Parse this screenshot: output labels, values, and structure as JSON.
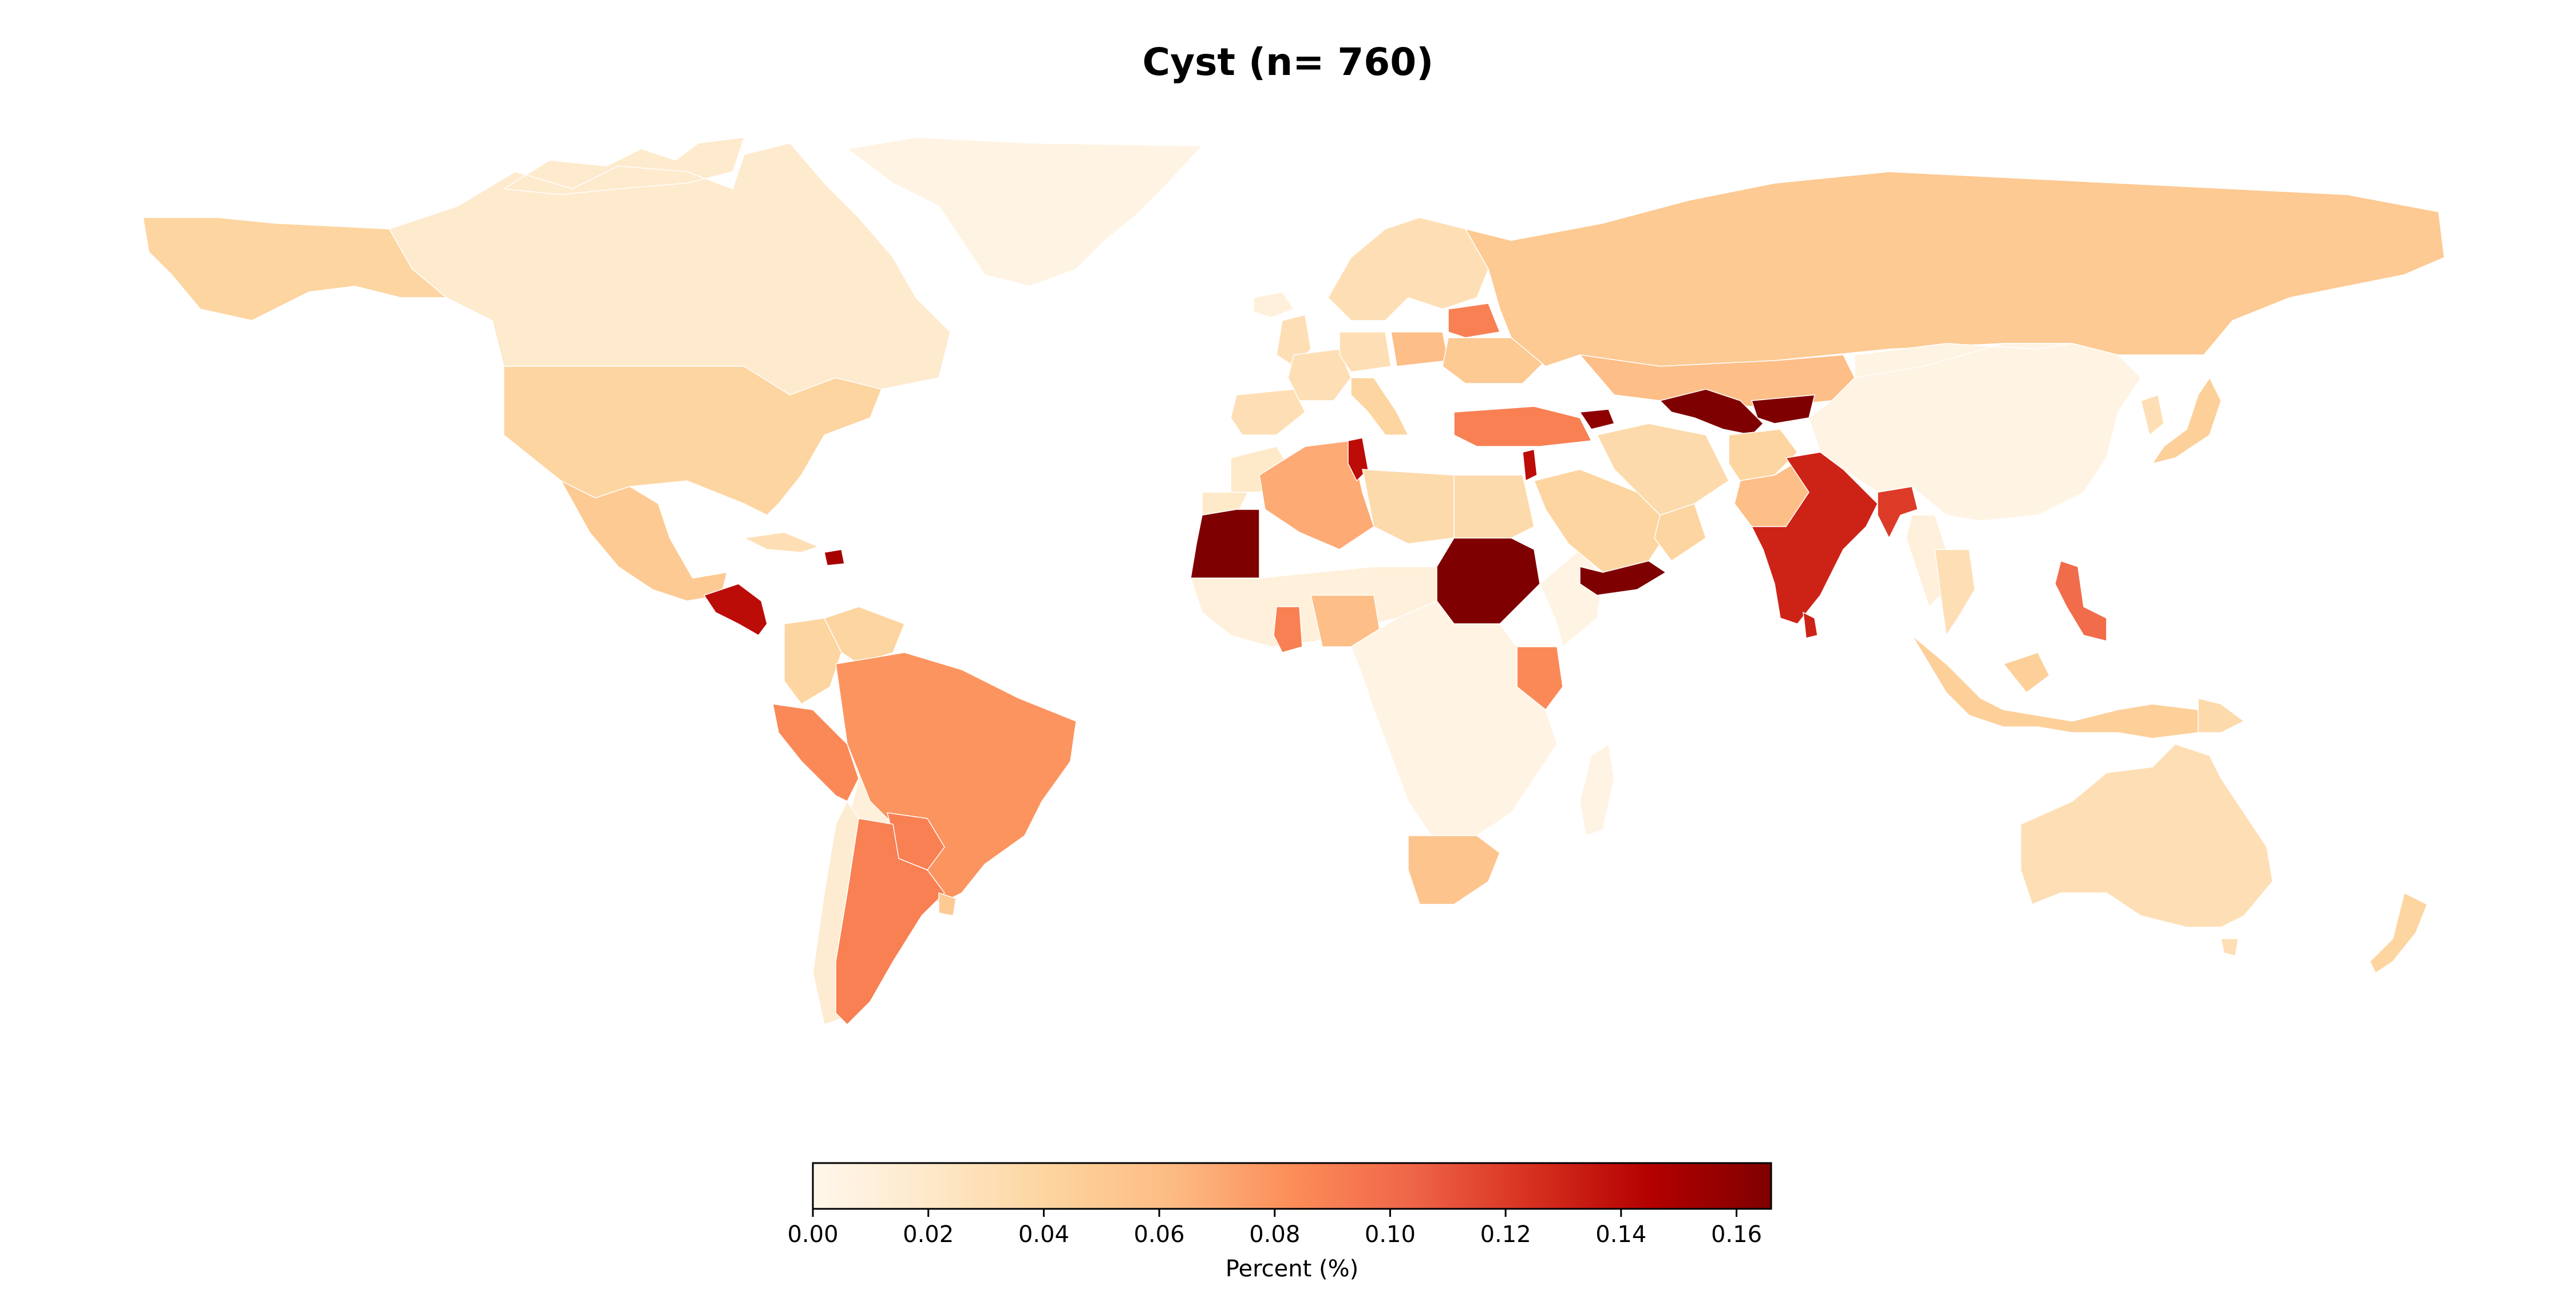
{
  "title": "Cyst (n= 760)",
  "colorbar": {
    "label": "Percent (%)",
    "min": 0.0,
    "max": 0.166,
    "ticks": [
      "0.00",
      "0.02",
      "0.04",
      "0.06",
      "0.08",
      "0.10",
      "0.12",
      "0.14",
      "0.16"
    ],
    "tick_values": [
      0.0,
      0.02,
      0.04,
      0.06,
      0.08,
      0.1,
      0.12,
      0.14,
      0.16
    ],
    "colormap": "OrRd",
    "stops": [
      "#fff7ec",
      "#fee8c8",
      "#fdd49e",
      "#fdbb84",
      "#fc8d59",
      "#ef6548",
      "#d7301f",
      "#b30000",
      "#7f0000"
    ]
  },
  "no_data_color": "#d9d9d9",
  "regions": [
    {
      "name": "Canada",
      "value": 0.018
    },
    {
      "name": "Greenland",
      "value": 0.005
    },
    {
      "name": "Alaska",
      "value": 0.04
    },
    {
      "name": "United States",
      "value": 0.04
    },
    {
      "name": "Mexico",
      "value": 0.05
    },
    {
      "name": "Guatemala",
      "value": 0.14
    },
    {
      "name": "Cuba",
      "value": 0.03
    },
    {
      "name": "Dominican Republic",
      "value": 0.15
    },
    {
      "name": "Colombia",
      "value": 0.04
    },
    {
      "name": "Venezuela",
      "value": 0.04
    },
    {
      "name": "Peru",
      "value": 0.085
    },
    {
      "name": "Brazil",
      "value": 0.08
    },
    {
      "name": "Bolivia",
      "value": 0.01
    },
    {
      "name": "Paraguay",
      "value": 0.09
    },
    {
      "name": "Chile",
      "value": 0.015
    },
    {
      "name": "Argentina",
      "value": 0.09
    },
    {
      "name": "Uruguay",
      "value": 0.05
    },
    {
      "name": "Iceland",
      "value": 0.01
    },
    {
      "name": "United Kingdom",
      "value": 0.03
    },
    {
      "name": "Spain",
      "value": 0.03
    },
    {
      "name": "France",
      "value": 0.03
    },
    {
      "name": "Italy",
      "value": 0.04
    },
    {
      "name": "Germany",
      "value": 0.03
    },
    {
      "name": "Poland",
      "value": 0.06
    },
    {
      "name": "Scandinavia",
      "value": 0.03
    },
    {
      "name": "Belarus",
      "value": 0.09
    },
    {
      "name": "Ukraine",
      "value": 0.05
    },
    {
      "name": "Russia",
      "value": 0.05
    },
    {
      "name": "Morocco",
      "value": 0.02
    },
    {
      "name": "Western Sahara",
      "value": 0.02
    },
    {
      "name": "Algeria",
      "value": 0.07
    },
    {
      "name": "Tunisia",
      "value": 0.14
    },
    {
      "name": "Libya",
      "value": 0.035
    },
    {
      "name": "Egypt",
      "value": 0.035
    },
    {
      "name": "Mauritania",
      "value": 0.166
    },
    {
      "name": "Sahel",
      "value": 0.01
    },
    {
      "name": "Sudan",
      "value": 0.166
    },
    {
      "name": "Ghana",
      "value": 0.09
    },
    {
      "name": "Nigeria",
      "value": 0.06
    },
    {
      "name": "Kenya",
      "value": 0.085
    },
    {
      "name": "Central Africa",
      "value": 0.005
    },
    {
      "name": "South Africa",
      "value": 0.055
    },
    {
      "name": "Madagascar",
      "value": 0.005
    },
    {
      "name": "Turkey",
      "value": 0.09
    },
    {
      "name": "Israel",
      "value": 0.14
    },
    {
      "name": "Azerbaijan",
      "value": 0.16
    },
    {
      "name": "Saudi Arabia",
      "value": 0.04
    },
    {
      "name": "Yemen",
      "value": 0.166
    },
    {
      "name": "Oman",
      "value": 0.04
    },
    {
      "name": "Iran",
      "value": 0.035
    },
    {
      "name": "Kazakhstan",
      "value": 0.06
    },
    {
      "name": "Uzbekistan",
      "value": 0.166
    },
    {
      "name": "Kyrgyzstan",
      "value": 0.166
    },
    {
      "name": "Afghanistan",
      "value": 0.04
    },
    {
      "name": "Pakistan",
      "value": 0.06
    },
    {
      "name": "India",
      "value": 0.13
    },
    {
      "name": "Sri Lanka",
      "value": 0.13
    },
    {
      "name": "Bangladesh",
      "value": 0.12
    },
    {
      "name": "Myanmar",
      "value": 0.01
    },
    {
      "name": "China",
      "value": 0.005
    },
    {
      "name": "Mongolia",
      "value": 0.005
    },
    {
      "name": "Korea",
      "value": 0.03
    },
    {
      "name": "Japan",
      "value": 0.045
    },
    {
      "name": "Thailand",
      "value": 0.03
    },
    {
      "name": "Philippines",
      "value": 0.1
    },
    {
      "name": "Indonesia",
      "value": 0.045
    },
    {
      "name": "Papua New Guinea",
      "value": 0.035
    },
    {
      "name": "Australia",
      "value": 0.03
    },
    {
      "name": "New Zealand",
      "value": 0.04
    }
  ]
}
